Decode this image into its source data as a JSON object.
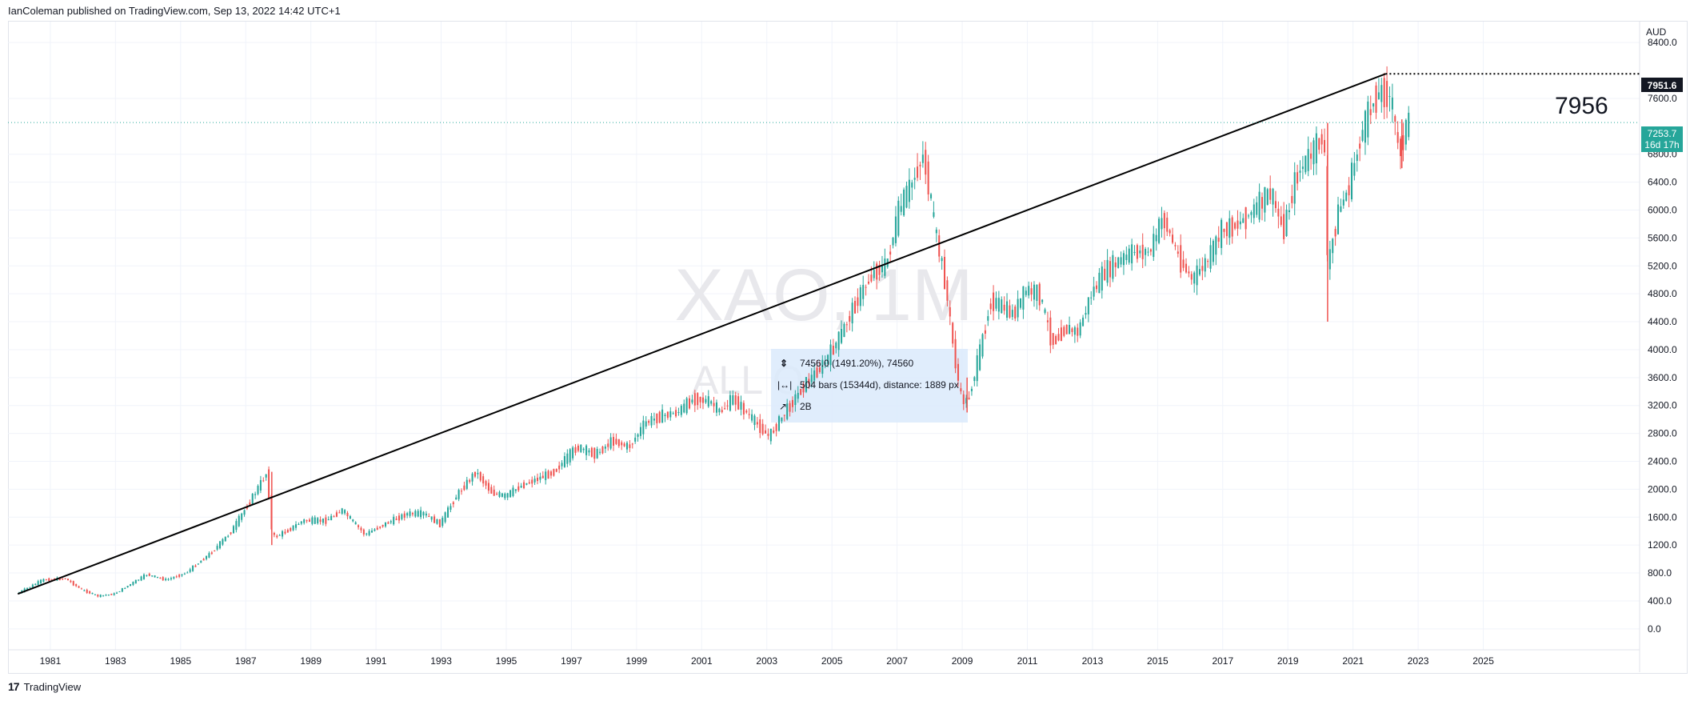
{
  "header": {
    "published_text": "IanColeman published on TradingView.com, Sep 13, 2022 14:42 UTC+1"
  },
  "footer": {
    "brand_mark": "17",
    "brand_name": "TradingView"
  },
  "watermark": {
    "symbol": "XAO, 1M",
    "name": "ALL O"
  },
  "currency_label": "AUD",
  "annotation": {
    "text": "7956"
  },
  "level_label": "7951.6",
  "last_price": {
    "value": "7253.7",
    "countdown": "16d 17h"
  },
  "measure": {
    "line1": "7456.0 (1491.20%), 74560",
    "line2": "504 bars (15344d), distance: 1889 px",
    "line3": "2B"
  },
  "colors": {
    "up": "#26a69a",
    "down": "#ef5350",
    "trendline": "#000000",
    "price_line": "#26a69a",
    "grid": "#f0f3fa",
    "measure_bg": "#dbeafc"
  },
  "chart_data": {
    "type": "candlestick",
    "timeframe": "1M",
    "ylim": [
      -300,
      8700
    ],
    "y_ticks": [
      0,
      400,
      800,
      1200,
      1600,
      2000,
      2400,
      2800,
      3200,
      3600,
      4000,
      4400,
      4800,
      5200,
      5600,
      6000,
      6400,
      6800,
      7600,
      8400
    ],
    "y_tick_labels": [
      "0.0",
      "400.0",
      "800.0",
      "1200.0",
      "1600.0",
      "2000.0",
      "2400.0",
      "2800.0",
      "3200.0",
      "3600.0",
      "4000.0",
      "4400.0",
      "4800.0",
      "5200.0",
      "5600.0",
      "6000.0",
      "6400.0",
      "6800.0",
      "7600.0",
      "8400.0"
    ],
    "xlim": [
      1979.7,
      2029.8
    ],
    "x_ticks": [
      1981,
      1983,
      1985,
      1987,
      1989,
      1991,
      1993,
      1995,
      1997,
      1999,
      2001,
      2003,
      2005,
      2007,
      2009,
      2011,
      2013,
      2015,
      2017,
      2019,
      2021,
      2023,
      2025
    ],
    "trendline": {
      "from": [
        1980.0,
        500
      ],
      "to": [
        2022.0,
        7951.6
      ]
    },
    "horizontal_level": 7951.6,
    "last_price": 7253.7,
    "path_points": [
      [
        1980.0,
        500
      ],
      [
        1980.8,
        700
      ],
      [
        1981.5,
        720
      ],
      [
        1982.0,
        560
      ],
      [
        1982.5,
        470
      ],
      [
        1983.0,
        500
      ],
      [
        1983.5,
        640
      ],
      [
        1984.0,
        780
      ],
      [
        1984.6,
        700
      ],
      [
        1985.2,
        800
      ],
      [
        1986.0,
        1100
      ],
      [
        1986.6,
        1400
      ],
      [
        1987.2,
        1850
      ],
      [
        1987.7,
        2250
      ],
      [
        1987.85,
        1300
      ],
      [
        1988.3,
        1400
      ],
      [
        1988.8,
        1550
      ],
      [
        1989.5,
        1550
      ],
      [
        1990.0,
        1700
      ],
      [
        1990.7,
        1350
      ],
      [
        1991.3,
        1500
      ],
      [
        1992.0,
        1650
      ],
      [
        1992.5,
        1650
      ],
      [
        1993.0,
        1500
      ],
      [
        1993.5,
        1900
      ],
      [
        1994.1,
        2250
      ],
      [
        1994.6,
        1950
      ],
      [
        1995.0,
        1900
      ],
      [
        1995.5,
        2050
      ],
      [
        1996.0,
        2150
      ],
      [
        1996.5,
        2250
      ],
      [
        1997.2,
        2600
      ],
      [
        1997.8,
        2500
      ],
      [
        1998.3,
        2700
      ],
      [
        1998.8,
        2600
      ],
      [
        1999.3,
        2950
      ],
      [
        1999.8,
        3050
      ],
      [
        2000.3,
        3100
      ],
      [
        2000.8,
        3300
      ],
      [
        2001.3,
        3250
      ],
      [
        2001.6,
        3100
      ],
      [
        2002.0,
        3300
      ],
      [
        2002.4,
        3100
      ],
      [
        2002.8,
        2900
      ],
      [
        2003.1,
        2750
      ],
      [
        2003.6,
        3100
      ],
      [
        2004.2,
        3500
      ],
      [
        2004.8,
        3800
      ],
      [
        2005.3,
        4200
      ],
      [
        2005.8,
        4700
      ],
      [
        2006.3,
        5100
      ],
      [
        2006.7,
        5200
      ],
      [
        2007.1,
        6000
      ],
      [
        2007.5,
        6400
      ],
      [
        2007.85,
        6800
      ],
      [
        2008.2,
        5700
      ],
      [
        2008.5,
        5000
      ],
      [
        2008.8,
        3900
      ],
      [
        2009.0,
        3300
      ],
      [
        2009.2,
        3250
      ],
      [
        2009.6,
        4000
      ],
      [
        2009.9,
        4700
      ],
      [
        2010.3,
        4600
      ],
      [
        2010.6,
        4500
      ],
      [
        2011.0,
        4850
      ],
      [
        2011.4,
        4800
      ],
      [
        2011.8,
        4100
      ],
      [
        2012.2,
        4300
      ],
      [
        2012.6,
        4250
      ],
      [
        2013.0,
        4800
      ],
      [
        2013.4,
        5100
      ],
      [
        2013.8,
        5250
      ],
      [
        2014.3,
        5400
      ],
      [
        2014.8,
        5400
      ],
      [
        2015.2,
        5900
      ],
      [
        2015.7,
        5300
      ],
      [
        2016.1,
        5000
      ],
      [
        2016.6,
        5300
      ],
      [
        2017.0,
        5700
      ],
      [
        2017.5,
        5800
      ],
      [
        2018.0,
        6000
      ],
      [
        2018.5,
        6250
      ],
      [
        2018.9,
        5700
      ],
      [
        2019.3,
        6500
      ],
      [
        2019.9,
        6900
      ],
      [
        2020.15,
        7100
      ],
      [
        2020.25,
        5200
      ],
      [
        2020.6,
        6000
      ],
      [
        2020.9,
        6300
      ],
      [
        2021.3,
        7100
      ],
      [
        2021.7,
        7600
      ],
      [
        2021.95,
        7700
      ],
      [
        2022.2,
        7600
      ],
      [
        2022.45,
        6800
      ],
      [
        2022.7,
        7250
      ]
    ],
    "spikes": [
      {
        "x": 2020.22,
        "low": 4400,
        "high": 7250
      },
      {
        "x": 2009.15,
        "low": 3100,
        "high": 3600
      },
      {
        "x": 1987.8,
        "low": 1200,
        "high": 2250
      },
      {
        "x": 2022.5,
        "low": 6600,
        "high": 7300
      }
    ]
  }
}
